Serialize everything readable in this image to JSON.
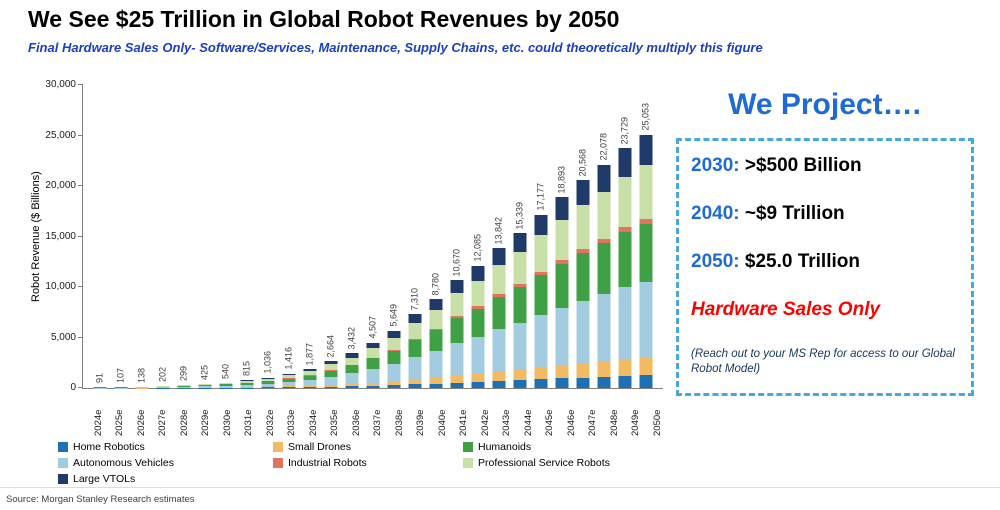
{
  "header": {
    "title": "We See $25 Trillion in Global Robot Revenues by 2050",
    "subtitle": "Final Hardware Sales Only- Software/Services, Maintenance, Supply Chains, etc. could theoretically multiply this figure"
  },
  "chart_data": {
    "type": "bar",
    "stacked": true,
    "ylabel": "Robot Revenue ($ Billions)",
    "ylim": [
      0,
      30000
    ],
    "yticks": [
      0,
      5000,
      10000,
      15000,
      20000,
      25000,
      30000
    ],
    "ytick_labels": [
      "0",
      "5,000",
      "10,000",
      "15,000",
      "20,000",
      "25,000",
      "30,000"
    ],
    "grid": false,
    "categories": [
      "2024e",
      "2025e",
      "2026e",
      "2027e",
      "2028e",
      "2029e",
      "2030e",
      "2031e",
      "2032e",
      "2033e",
      "2034e",
      "2035e",
      "2036e",
      "2037e",
      "2038e",
      "2039e",
      "2040e",
      "2041e",
      "2042e",
      "2043e",
      "2044e",
      "2045e",
      "2046e",
      "2047e",
      "2048e",
      "2049e",
      "2050e"
    ],
    "totals": [
      91,
      107,
      138,
      202,
      299,
      425,
      540,
      815,
      1036,
      1416,
      1877,
      2664,
      3432,
      4507,
      5649,
      7310,
      8780,
      10670,
      12085,
      13842,
      15339,
      17177,
      18893,
      20568,
      22078,
      23729,
      25053
    ],
    "total_labels": [
      "91",
      "107",
      "138",
      "202",
      "299",
      "425",
      "540",
      "815",
      "1,036",
      "1,416",
      "1,877",
      "2,664",
      "3,432",
      "4,507",
      "5,649",
      "7,310",
      "8,780",
      "10,670",
      "12,085",
      "13,842",
      "15,339",
      "17,177",
      "18,893",
      "20,568",
      "22,078",
      "23,729",
      "25,053"
    ],
    "series": [
      {
        "name": "Home Robotics",
        "color": "#1F6FB5",
        "values": [
          5,
          5,
          7,
          10,
          15,
          21,
          27,
          41,
          52,
          71,
          94,
          133,
          172,
          225,
          282,
          366,
          439,
          534,
          604,
          692,
          767,
          859,
          945,
          1028,
          1104,
          1186,
          1253
        ]
      },
      {
        "name": "Small Drones",
        "color": "#F0BB62",
        "values": [
          6,
          7,
          10,
          14,
          21,
          30,
          38,
          57,
          73,
          99,
          131,
          186,
          240,
          315,
          395,
          512,
          615,
          747,
          846,
          969,
          1074,
          1202,
          1323,
          1440,
          1545,
          1661,
          1754
        ]
      },
      {
        "name": "Autonomous Vehicles",
        "color": "#A3CCE0",
        "values": [
          27,
          32,
          41,
          61,
          90,
          128,
          162,
          245,
          311,
          425,
          563,
          799,
          1030,
          1352,
          1695,
          2193,
          2634,
          3201,
          3626,
          4153,
          4602,
          5153,
          5668,
          6170,
          6623,
          7119,
          7516
        ]
      },
      {
        "name": "Humanoids",
        "color": "#3FA045",
        "values": [
          21,
          25,
          32,
          46,
          69,
          98,
          124,
          187,
          238,
          326,
          432,
          613,
          789,
          1037,
          1299,
          1681,
          2019,
          2454,
          2780,
          3184,
          3528,
          3951,
          4345,
          4731,
          5078,
          5458,
          5762
        ]
      },
      {
        "name": "Industrial Robots",
        "color": "#E2735C",
        "values": [
          2,
          2,
          3,
          4,
          6,
          9,
          11,
          16,
          21,
          28,
          38,
          53,
          69,
          90,
          113,
          146,
          176,
          213,
          242,
          277,
          307,
          344,
          378,
          411,
          442,
          475,
          501
        ]
      },
      {
        "name": "Professional Service Robots",
        "color": "#C9DFA8",
        "values": [
          19,
          22,
          29,
          42,
          63,
          89,
          113,
          171,
          218,
          297,
          394,
          559,
          721,
          946,
          1186,
          1535,
          1844,
          2241,
          2538,
          2907,
          3221,
          3607,
          3968,
          4319,
          4636,
          4983,
          5261
        ]
      },
      {
        "name": "Large VTOLs",
        "color": "#1F3A68",
        "values": [
          11,
          14,
          16,
          25,
          35,
          50,
          65,
          98,
          123,
          170,
          225,
          321,
          411,
          542,
          679,
          877,
          1053,
          1280,
          1449,
          1660,
          1840,
          2061,
          2266,
          2469,
          2650,
          2847,
          3006
        ]
      }
    ],
    "legend": {
      "position": "bottom",
      "order": [
        "Home Robotics",
        "Small Drones",
        "Humanoids",
        "Autonomous Vehicles",
        "Industrial Robots",
        "Professional Service Robots",
        "Large VTOLs"
      ]
    }
  },
  "projection_panel": {
    "heading": "We Project….",
    "items": [
      {
        "year_label": "2030:",
        "value_label": ">$500 Billion"
      },
      {
        "year_label": "2040:",
        "value_label": "~$9 Trillion"
      },
      {
        "year_label": "2050:",
        "value_label": "$25.0 Trillion"
      }
    ],
    "hardware_note": "Hardware Sales Only",
    "footnote": "(Reach out to your MS Rep for access to our Global Robot Model)"
  },
  "footer": {
    "source": "Source: Morgan Stanley Research estimates"
  },
  "colors": {
    "subtitle_blue": "#1B3FC4",
    "projection_blue": "#1E6BD6",
    "dashed_border": "#45A9E0",
    "hardware_red": "#FF0000"
  }
}
